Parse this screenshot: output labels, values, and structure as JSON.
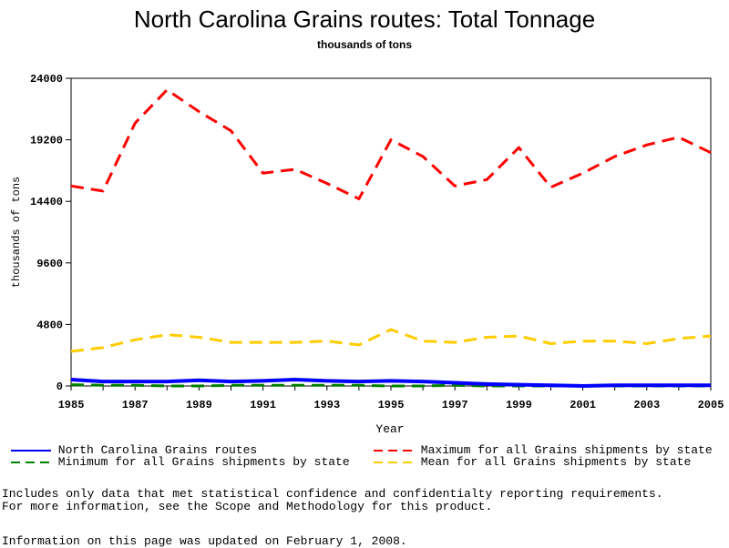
{
  "chart_data": {
    "type": "line",
    "title": "North Carolina Grains routes: Total Tonnage",
    "subtitle": "thousands of tons",
    "xlabel": "Year",
    "ylabel": "thousands of tons",
    "xlim": [
      1985,
      2005
    ],
    "ylim": [
      0,
      24000
    ],
    "x_ticks": [
      "1985",
      "1987",
      "1989",
      "1991",
      "1993",
      "1995",
      "1997",
      "1999",
      "2001",
      "2003",
      "2005"
    ],
    "y_ticks": [
      "0",
      "4800",
      "9600",
      "14400",
      "19200",
      "24000"
    ],
    "x": [
      1985,
      1986,
      1987,
      1988,
      1989,
      1990,
      1991,
      1992,
      1993,
      1994,
      1995,
      1996,
      1997,
      1998,
      1999,
      2000,
      2001,
      2002,
      2003,
      2004,
      2005
    ],
    "series": [
      {
        "name": "North Carolina Grains routes",
        "color": "#0000ff",
        "dash": "solid",
        "values": [
          500,
          350,
          350,
          350,
          450,
          350,
          400,
          500,
          400,
          350,
          400,
          350,
          250,
          150,
          100,
          50,
          0,
          50,
          50,
          50,
          50
        ]
      },
      {
        "name": "Maximum for all Grains shipments by state",
        "color": "#ff0000",
        "dash": "dashed",
        "values": [
          15600,
          15200,
          20500,
          23100,
          21400,
          19900,
          16600,
          16900,
          15800,
          14600,
          19200,
          17900,
          15600,
          16100,
          18600,
          15500,
          16600,
          17900,
          18800,
          19400,
          18200
        ]
      },
      {
        "name": "Minimum for all Grains shipments by state",
        "color": "#008000",
        "dash": "dashed",
        "values": [
          100,
          50,
          50,
          0,
          0,
          50,
          50,
          50,
          50,
          50,
          0,
          0,
          50,
          0,
          0,
          0,
          0,
          0,
          0,
          0,
          0
        ]
      },
      {
        "name": "Mean for all Grains shipments by state",
        "color": "#ffcc00",
        "dash": "dashed",
        "values": [
          2700,
          3000,
          3600,
          4000,
          3800,
          3400,
          3400,
          3400,
          3500,
          3200,
          4400,
          3500,
          3400,
          3800,
          3900,
          3300,
          3500,
          3500,
          3300,
          3700,
          3900
        ]
      }
    ],
    "legend_placement": "bottom",
    "grid": false
  },
  "notes": {
    "line1": "Includes only data that met statistical confidence and confidentialty reporting requirements.",
    "line2": "For more information, see the Scope and Methodology for this product.",
    "line3": "Information on this page was updated on February 1, 2008."
  }
}
